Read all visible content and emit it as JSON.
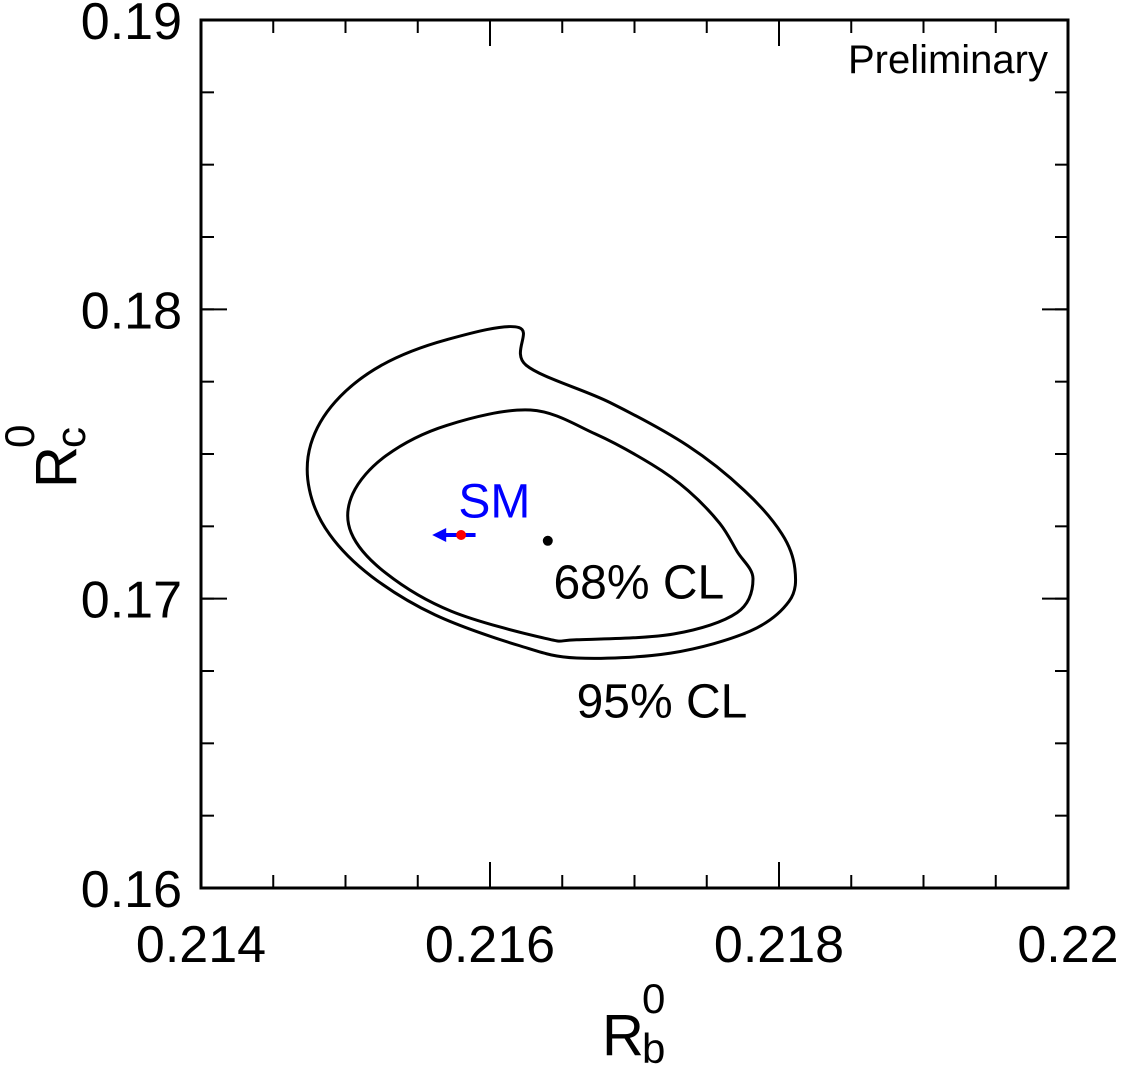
{
  "chart_data": {
    "type": "scatter",
    "title": "",
    "annotation_text": "Preliminary",
    "xlabel": {
      "main": "R",
      "sub": "b",
      "sup": "0"
    },
    "ylabel": {
      "main": "R",
      "sub": "c",
      "sup": "0"
    },
    "xlim": [
      0.214,
      0.22
    ],
    "ylim": [
      0.16,
      0.19
    ],
    "x_ticks": [
      0.214,
      0.216,
      0.218,
      0.22
    ],
    "x_tick_labels": [
      "0.214",
      "0.216",
      "0.218",
      "0.22"
    ],
    "y_ticks": [
      0.16,
      0.17,
      0.18,
      0.19
    ],
    "y_tick_labels": [
      "0.16",
      "0.17",
      "0.18",
      "0.19"
    ],
    "x_minor_step": 0.0005,
    "y_minor_step": 0.0025,
    "grid": false,
    "contours": [
      {
        "name": "95% CL",
        "color": "#000000",
        "points": [
          [
            0.2162,
            0.17937
          ],
          [
            0.2157,
            0.17895
          ],
          [
            0.21525,
            0.17807
          ],
          [
            0.21493,
            0.17681
          ],
          [
            0.21476,
            0.17534
          ],
          [
            0.21475,
            0.17377
          ],
          [
            0.21489,
            0.17222
          ],
          [
            0.21518,
            0.17077
          ],
          [
            0.21562,
            0.16944
          ],
          [
            0.2162,
            0.16838
          ],
          [
            0.2166,
            0.16795
          ],
          [
            0.21725,
            0.16812
          ],
          [
            0.2178,
            0.16888
          ],
          [
            0.21807,
            0.16991
          ],
          [
            0.21811,
            0.17103
          ],
          [
            0.21802,
            0.17224
          ],
          [
            0.21776,
            0.17374
          ],
          [
            0.21737,
            0.17528
          ],
          [
            0.21683,
            0.17678
          ],
          [
            0.21625,
            0.17807
          ],
          [
            0.2162,
            0.17937
          ]
        ]
      },
      {
        "name": "68% CL",
        "color": "#000000",
        "points": [
          [
            0.21628,
            0.17652
          ],
          [
            0.2157,
            0.17599
          ],
          [
            0.21528,
            0.17494
          ],
          [
            0.21505,
            0.17362
          ],
          [
            0.21504,
            0.17227
          ],
          [
            0.21528,
            0.17088
          ],
          [
            0.21573,
            0.16957
          ],
          [
            0.21638,
            0.16863
          ],
          [
            0.2166,
            0.16858
          ],
          [
            0.21727,
            0.16878
          ],
          [
            0.21771,
            0.16952
          ],
          [
            0.21782,
            0.17069
          ],
          [
            0.21771,
            0.17163
          ],
          [
            0.21759,
            0.1726
          ],
          [
            0.21737,
            0.17374
          ],
          [
            0.21712,
            0.17464
          ],
          [
            0.21673,
            0.17569
          ],
          [
            0.21628,
            0.17652
          ]
        ]
      }
    ],
    "points": [
      {
        "name": "measurement",
        "x": 0.2164,
        "y": 0.172,
        "color": "#000000"
      },
      {
        "name": "SM",
        "x": 0.2158,
        "y": 0.1722,
        "color": "#ff0000"
      }
    ],
    "sm_arrow": {
      "from": [
        0.2159,
        0.1722
      ],
      "to": [
        0.2156,
        0.1722
      ],
      "color": "#0000ff"
    },
    "labels": [
      {
        "text": "SM",
        "x": 0.21603,
        "y": 0.1728,
        "color": "#0000ff"
      },
      {
        "text": "68% CL",
        "x": 0.21703,
        "y": 0.17,
        "color": "#000000"
      },
      {
        "text": "95% CL",
        "x": 0.21719,
        "y": 0.1659,
        "color": "#000000"
      }
    ]
  }
}
